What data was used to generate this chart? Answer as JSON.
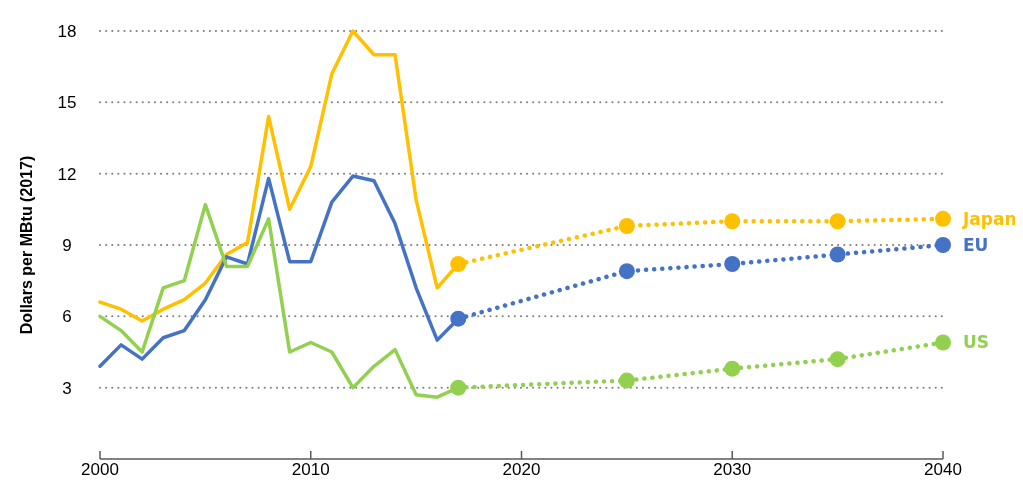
{
  "chart_data": {
    "type": "line",
    "ylabel": "Dollars per MBtu (2017)",
    "xlim": [
      2000,
      2040
    ],
    "xticks": [
      2000,
      2010,
      2020,
      2030,
      2040
    ],
    "ylim": [
      0,
      18
    ],
    "yticks": [
      3,
      6,
      9,
      12,
      15,
      18
    ],
    "grid": "y",
    "legend": false,
    "series": [
      {
        "color": "#ffc000",
        "line_style": "solid",
        "marker": "none",
        "x": [
          2000,
          2001,
          2002,
          2003,
          2004,
          2005,
          2006,
          2007,
          2008,
          2009,
          2010,
          2011,
          2012,
          2013,
          2014,
          2015,
          2016,
          2017
        ],
        "values": [
          6.6,
          6.3,
          5.8,
          6.3,
          6.7,
          7.4,
          8.6,
          9.1,
          14.4,
          10.5,
          12.3,
          16.2,
          18,
          17,
          17,
          10.9,
          7.2,
          8.2
        ]
      },
      {
        "color": "#4472c4",
        "line_style": "solid",
        "marker": "none",
        "x": [
          2000,
          2001,
          2002,
          2003,
          2004,
          2005,
          2006,
          2007,
          2008,
          2009,
          2010,
          2011,
          2012,
          2013,
          2014,
          2015,
          2016,
          2017
        ],
        "values": [
          3.9,
          4.8,
          4.2,
          5.1,
          5.4,
          6.7,
          8.5,
          8.2,
          11.8,
          8.3,
          8.3,
          10.8,
          11.9,
          11.7,
          9.9,
          7.2,
          5,
          5.9
        ]
      },
      {
        "color": "#92d050",
        "line_style": "solid",
        "marker": "none",
        "x": [
          2000,
          2001,
          2002,
          2003,
          2004,
          2005,
          2006,
          2007,
          2008,
          2009,
          2010,
          2011,
          2012,
          2013,
          2014,
          2015,
          2016,
          2017
        ],
        "values": [
          6,
          5.4,
          4.5,
          7.2,
          7.5,
          10.7,
          8.1,
          8.1,
          10.1,
          4.5,
          4.9,
          4.5,
          3,
          3.9,
          4.6,
          2.7,
          2.6,
          3
        ]
      },
      {
        "name": "Japan",
        "color": "#ffc000",
        "line_style": "dotted",
        "marker": "circle",
        "x": [
          2017,
          2025,
          2030,
          2035,
          2040
        ],
        "values": [
          8.2,
          9.8,
          10,
          10,
          10.1
        ]
      },
      {
        "name": "EU",
        "color": "#4472c4",
        "line_style": "dotted",
        "marker": "circle",
        "x": [
          2017,
          2025,
          2030,
          2035,
          2040
        ],
        "values": [
          5.9,
          7.9,
          8.2,
          8.6,
          9
        ]
      },
      {
        "name": "US",
        "color": "#92d050",
        "line_style": "dotted",
        "marker": "circle",
        "x": [
          2017,
          2025,
          2030,
          2035,
          2040
        ],
        "values": [
          3,
          3.3,
          3.8,
          4.2,
          4.9
        ]
      }
    ]
  }
}
